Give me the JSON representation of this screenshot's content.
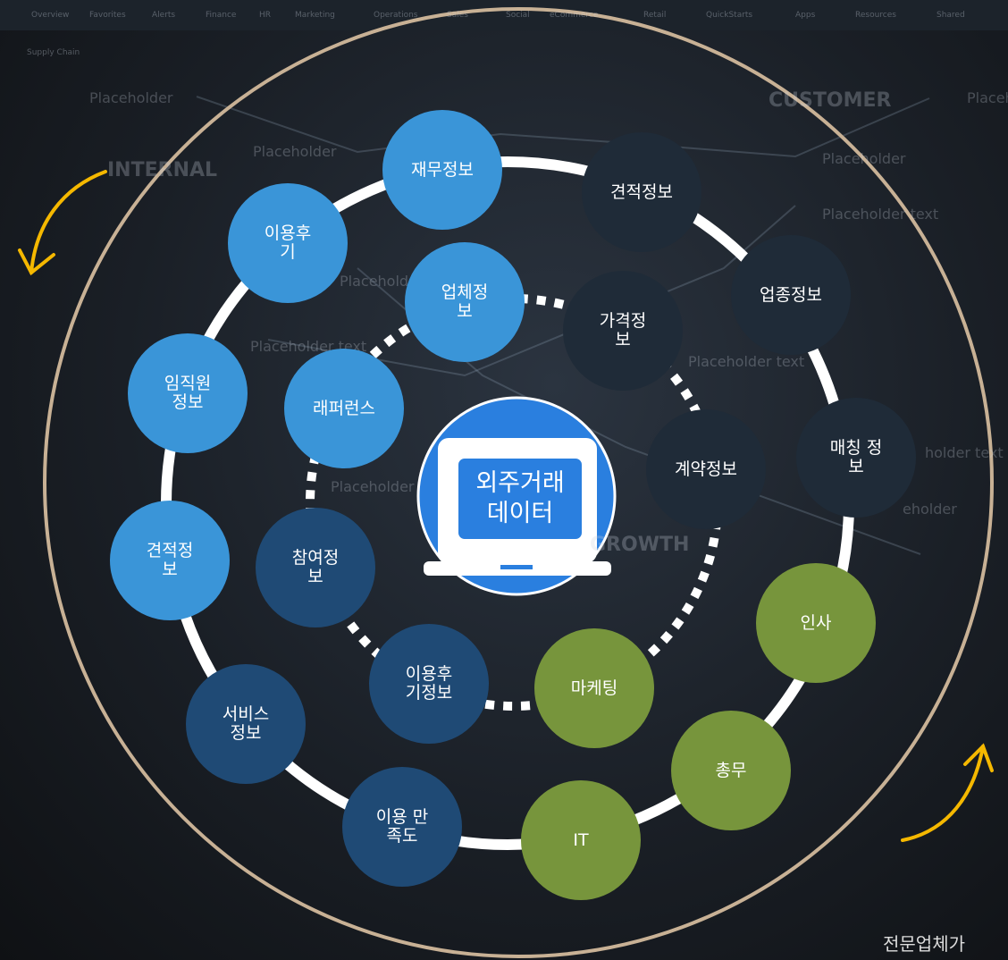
{
  "background": {
    "tabs": [
      "Overview",
      "Favorites",
      "Alerts",
      "Finance",
      "HR",
      "Marketing",
      "Operations",
      "Sales",
      "Social",
      "eCommerce",
      "Retail",
      "QuickStarts",
      "Apps",
      "Resources",
      "Shared"
    ],
    "subtab": "Supply Chain",
    "labels": [
      "Placeholder",
      "INTERNAL",
      "Placeholder",
      "CUSTOMER",
      "Placeholder",
      "Placeholder",
      "Placeholder text",
      "Placeholder text",
      "Placeholder text",
      "Placeholder text",
      "holder text",
      "eholder",
      "Placeholder",
      "GROWTH"
    ]
  },
  "center": {
    "label": "외주거래\n데이터"
  },
  "outer_nodes": [
    {
      "label": "재무정보"
    },
    {
      "label": "견적정보"
    },
    {
      "label": "업종정보"
    },
    {
      "label": "매칭 정\n보"
    },
    {
      "label": "인사"
    },
    {
      "label": "총무"
    },
    {
      "label": "IT"
    },
    {
      "label": "이용 만\n족도"
    },
    {
      "label": "서비스\n정보"
    },
    {
      "label": "견적정\n보"
    },
    {
      "label": "임직원\n정보"
    },
    {
      "label": "이용후\n기"
    }
  ],
  "inner_nodes": [
    {
      "label": "업체정\n보"
    },
    {
      "label": "가격정\n보"
    },
    {
      "label": "계약정보"
    },
    {
      "label": "마케팅"
    },
    {
      "label": "이용후\n기정보"
    },
    {
      "label": "참여정\n보"
    },
    {
      "label": "래퍼런스"
    }
  ],
  "footer": "전문업체가"
}
